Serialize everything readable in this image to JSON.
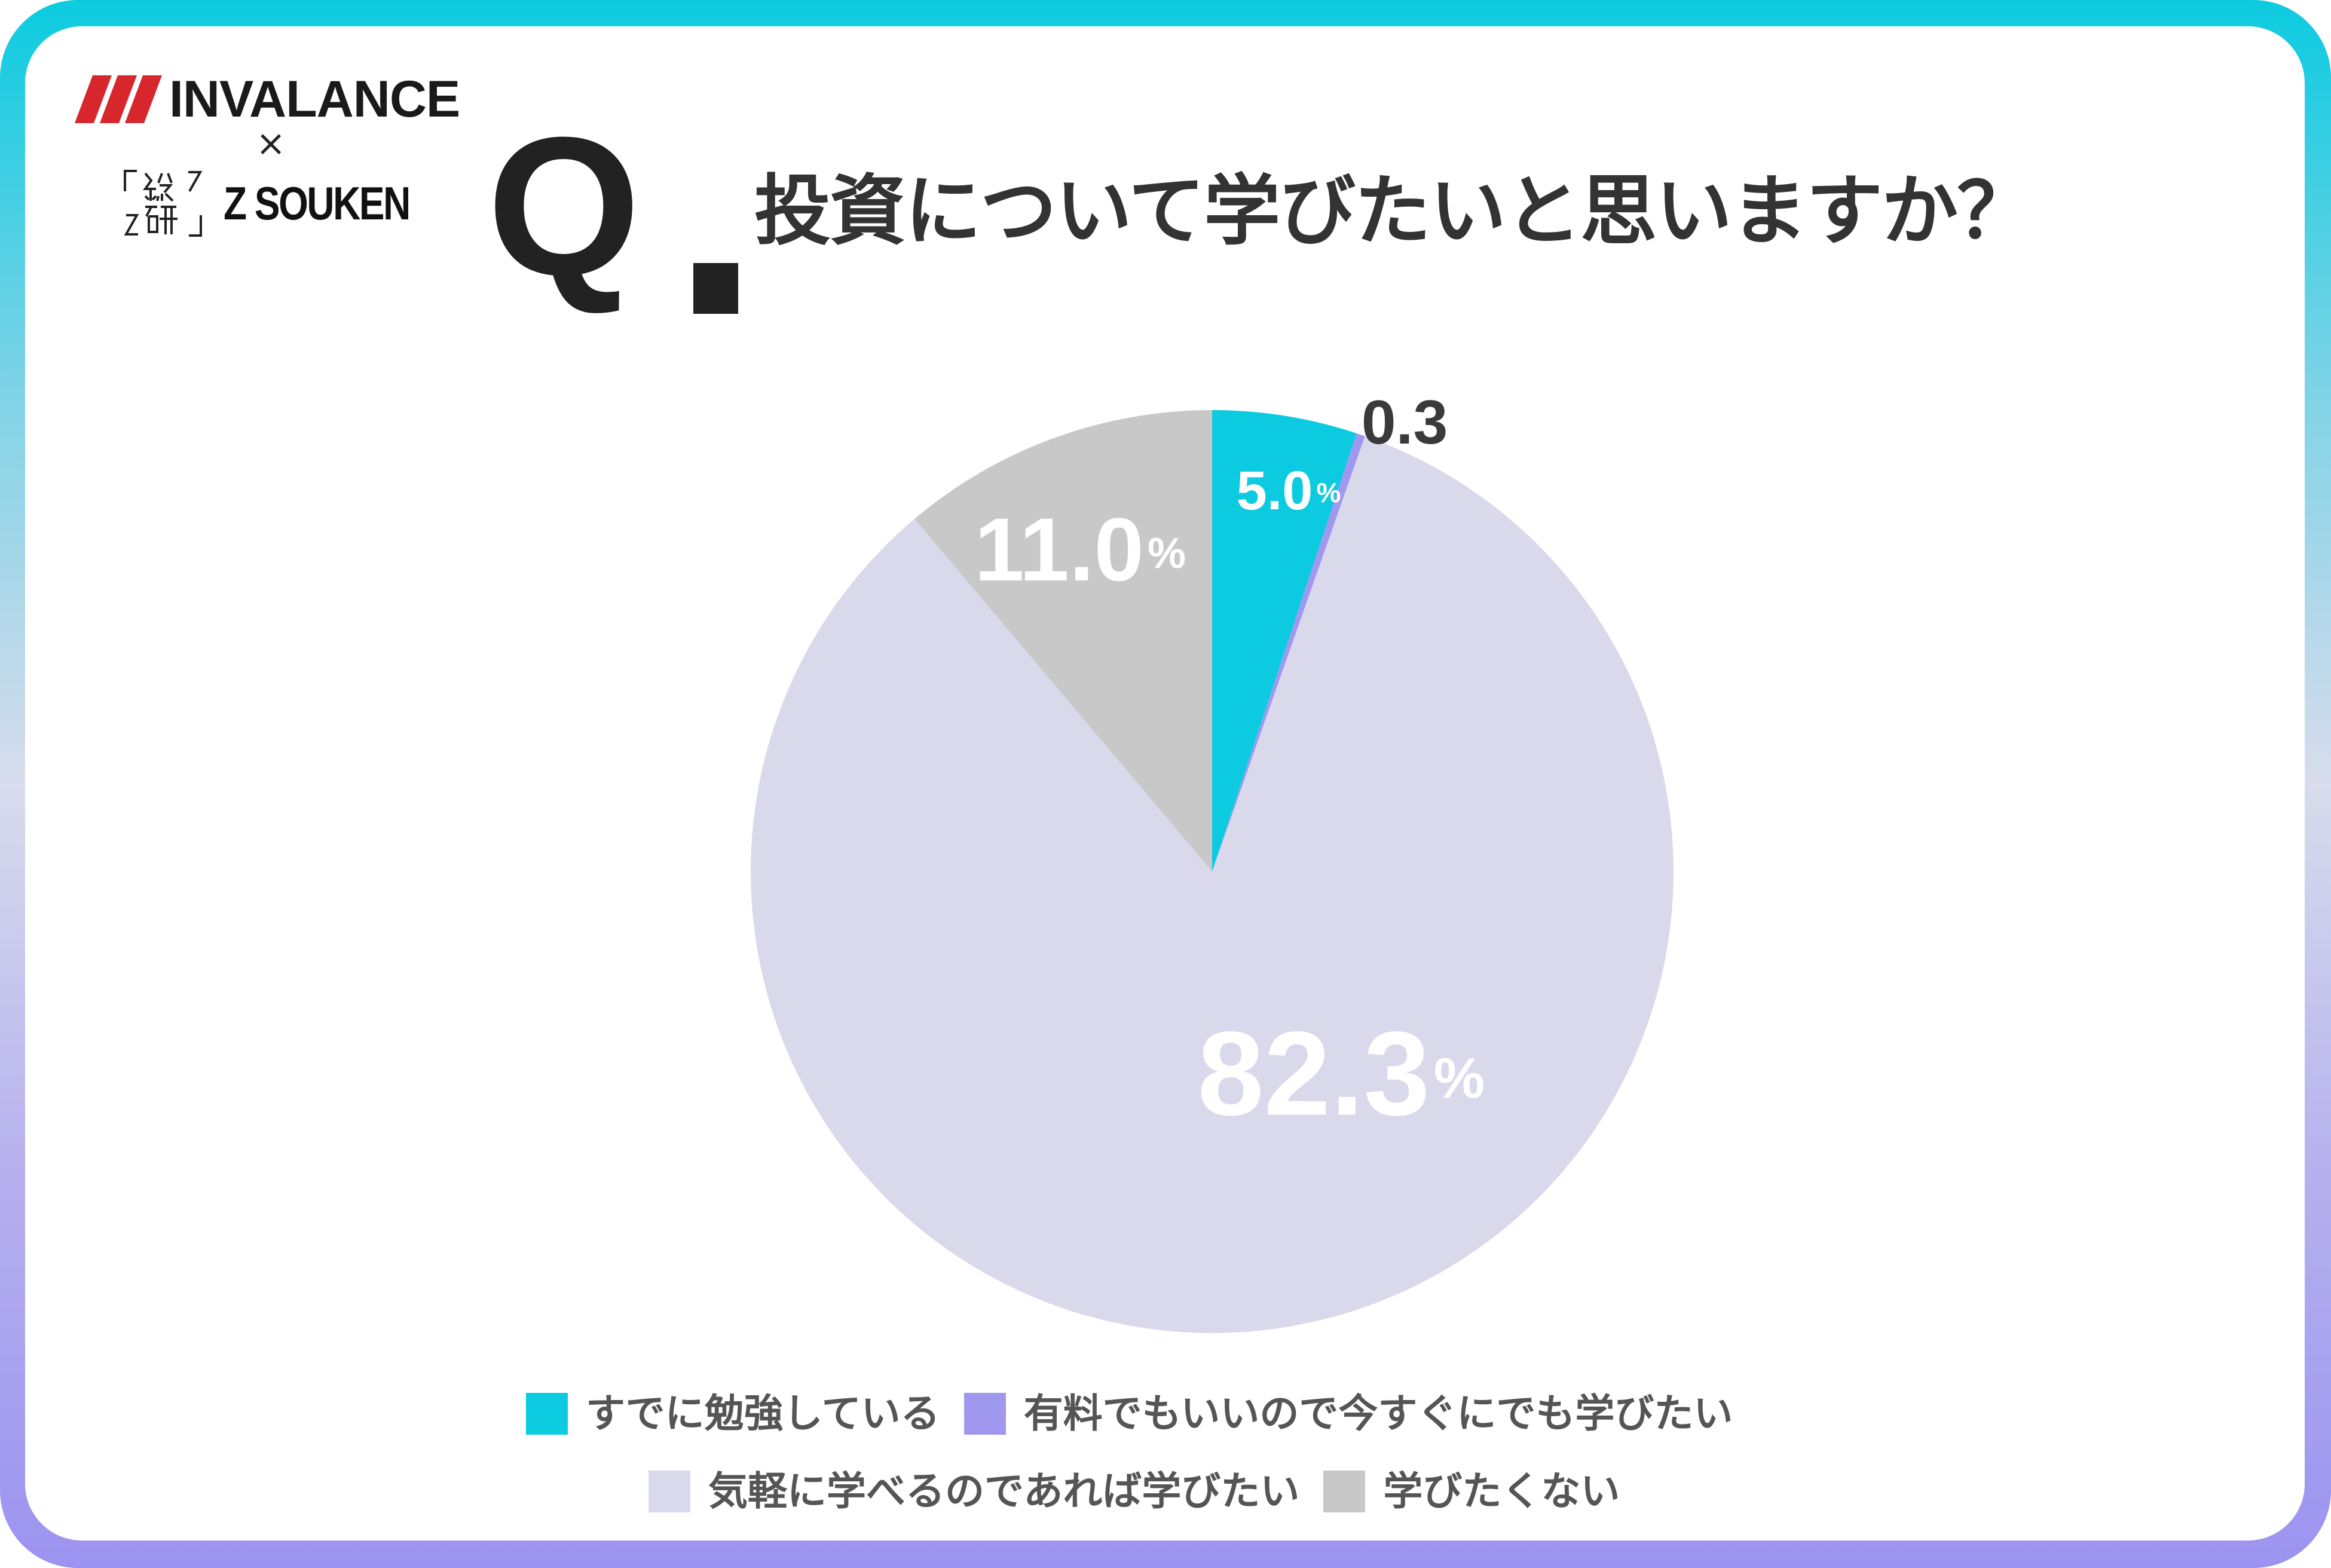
{
  "brand": {
    "logo_text": "INVALANCE",
    "times": "×",
    "partner_mark": "「総研」",
    "partner_text": "Z SOUKEN",
    "colors": {
      "frame_top": "#0ccbe0",
      "frame_bottom": "#9c93f0",
      "logo_red": "#d8262d"
    }
  },
  "question": {
    "prefix": "Q",
    "text": "投資について学びたいと思いますか？"
  },
  "chart_data": {
    "type": "pie",
    "start_angle": "12 o'clock",
    "direction": "clockwise",
    "slices": [
      {
        "label": "すでに勉強している",
        "value": 5.0,
        "display": "5.0",
        "unit": "%",
        "color": "#0ccbe0"
      },
      {
        "label": "有料でもいいので今すぐにでも学びたい",
        "value": 0.3,
        "display": "0.3",
        "unit": "",
        "color": "#9f98ee"
      },
      {
        "label": "気軽に学べるのであれば学びたい",
        "value": 82.3,
        "display": "82.3",
        "unit": "%",
        "color": "#dad9ec"
      },
      {
        "label": "学びたくない",
        "value": 11.0,
        "display": "11.0",
        "unit": "%",
        "color": "#c8c8c8"
      }
    ],
    "legend_position": "bottom"
  }
}
